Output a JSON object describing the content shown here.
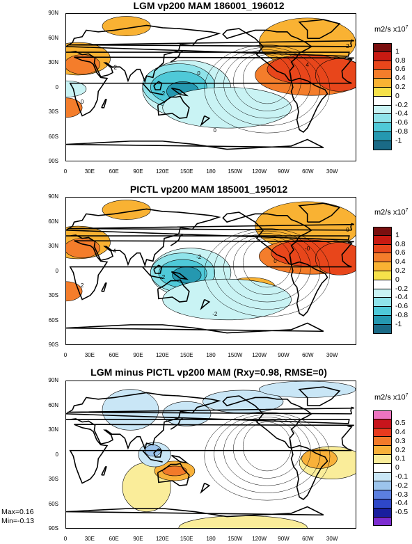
{
  "panels": [
    {
      "title": "LGM vp200 MAM 186001_196012",
      "unit": "m2/s x10",
      "unit_exp": "7",
      "levels": [
        "1",
        "0.8",
        "0.6",
        "0.4",
        "0.2",
        "0",
        "-0.2",
        "-0.4",
        "-0.6",
        "-0.8",
        "-1"
      ],
      "colors": [
        "#7a0f0f",
        "#c81a12",
        "#e8461b",
        "#f47d2b",
        "#f9b233",
        "#f6e14a",
        "#ffffff",
        "#c9f3f4",
        "#8fe3ea",
        "#4fc9d8",
        "#2598b0",
        "#1a6a86"
      ],
      "contour_labels": [
        "0",
        "4",
        "-2",
        "0",
        "-2",
        "2",
        "0"
      ]
    },
    {
      "title": "PICTL vp200 MAM 185001_195012",
      "unit": "m2/s x10",
      "unit_exp": "7",
      "levels": [
        "1",
        "0.8",
        "0.6",
        "0.4",
        "0.2",
        "0",
        "-0.2",
        "-0.4",
        "-0.6",
        "-0.8",
        "-1"
      ],
      "colors": [
        "#7a0f0f",
        "#c81a12",
        "#e8461b",
        "#f47d2b",
        "#f9b233",
        "#f6e14a",
        "#ffffff",
        "#c9f3f4",
        "#8fe3ea",
        "#4fc9d8",
        "#2598b0",
        "#1a6a86"
      ],
      "contour_labels": [
        "-2",
        "-0",
        "4",
        "-2",
        "-2",
        "0",
        "2",
        "0"
      ]
    },
    {
      "title": "LGM minus PICTL vp200 MAM (Rxy=0.98, RMSE=0)",
      "unit": "m2/s x10",
      "unit_exp": "7",
      "levels": [
        "0.5",
        "0.4",
        "0.3",
        "0.2",
        "0.1",
        "0",
        "-0.1",
        "-0.2",
        "-0.3",
        "-0.4",
        "-0.5"
      ],
      "colors": [
        "#ee74c0",
        "#c8141c",
        "#e83a1e",
        "#f27a2a",
        "#f8b13a",
        "#faed9a",
        "#ffffff",
        "#c9e6f6",
        "#9cc4ec",
        "#5b7fe0",
        "#2e47c8",
        "#1a1e9e",
        "#7d2dd0"
      ],
      "contour_labels": [],
      "max": "Max=0.16",
      "min": "Min=-0.13"
    }
  ],
  "lat_labels": [
    "90N",
    "60N",
    "30N",
    "0",
    "30S",
    "60S",
    "90S"
  ],
  "lon_labels": [
    "0",
    "30E",
    "60E",
    "90E",
    "120E",
    "150E",
    "180",
    "150W",
    "120W",
    "90W",
    "60W",
    "30W"
  ],
  "chart_data": [
    {
      "type": "heatmap",
      "title": "LGM vp200 MAM 186001_196012",
      "x_ticks": [
        "0",
        "30E",
        "60E",
        "90E",
        "120E",
        "150E",
        "180",
        "150W",
        "120W",
        "90W",
        "60W",
        "30W"
      ],
      "y_ticks": [
        "90N",
        "60N",
        "30N",
        "0",
        "30S",
        "60S",
        "90S"
      ],
      "colorbar": [
        "-1",
        "-0.8",
        "-0.6",
        "-0.4",
        "-0.2",
        "0",
        "0.2",
        "0.4",
        "0.6",
        "0.8",
        "1"
      ],
      "colorbar_unit": "m2/s x10^7"
    },
    {
      "type": "heatmap",
      "title": "PICTL vp200 MAM 185001_195012",
      "x_ticks": [
        "0",
        "30E",
        "60E",
        "90E",
        "120E",
        "150E",
        "180",
        "150W",
        "120W",
        "90W",
        "60W",
        "30W"
      ],
      "y_ticks": [
        "90N",
        "60N",
        "30N",
        "0",
        "30S",
        "60S",
        "90S"
      ],
      "colorbar": [
        "-1",
        "-0.8",
        "-0.6",
        "-0.4",
        "-0.2",
        "0",
        "0.2",
        "0.4",
        "0.6",
        "0.8",
        "1"
      ],
      "colorbar_unit": "m2/s x10^7"
    },
    {
      "type": "heatmap",
      "title": "LGM minus PICTL vp200 MAM (Rxy=0.98, RMSE=0)",
      "x_ticks": [
        "0",
        "30E",
        "60E",
        "90E",
        "120E",
        "150E",
        "180",
        "150W",
        "120W",
        "90W",
        "60W",
        "30W"
      ],
      "y_ticks": [
        "90N",
        "60N",
        "30N",
        "0",
        "30S",
        "60S",
        "90S"
      ],
      "colorbar": [
        "-0.5",
        "-0.4",
        "-0.3",
        "-0.2",
        "-0.1",
        "0",
        "0.1",
        "0.2",
        "0.3",
        "0.4",
        "0.5"
      ],
      "colorbar_unit": "m2/s x10^7",
      "max": 0.16,
      "min": -0.13
    }
  ]
}
